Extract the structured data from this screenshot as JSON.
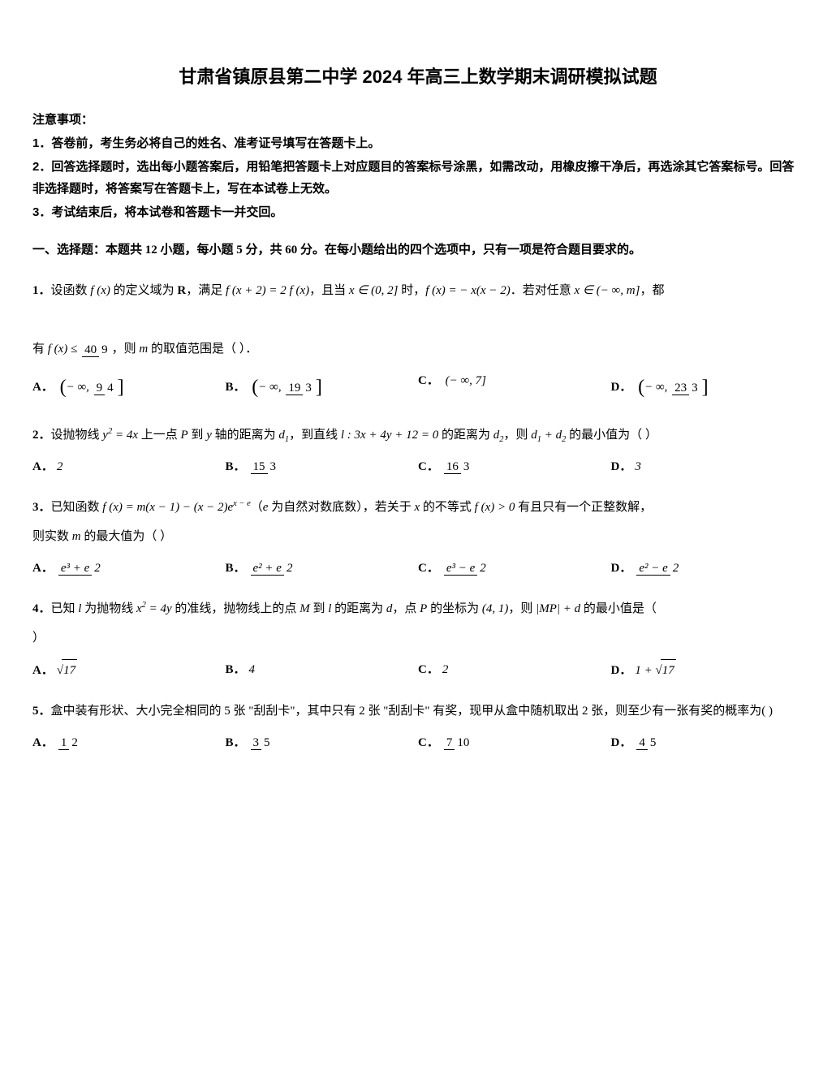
{
  "title": "甘肃省镇原县第二中学 2024 年高三上数学期末调研模拟试题",
  "instructions": {
    "heading": "注意事项：",
    "items": [
      "1．答卷前，考生务必将自己的姓名、准考证号填写在答题卡上。",
      "2．回答选择题时，选出每小题答案后，用铅笔把答题卡上对应题目的答案标号涂黑，如需改动，用橡皮擦干净后，再选涂其它答案标号。回答非选择题时，将答案写在答题卡上，写在本试卷上无效。",
      "3．考试结束后，将本试卷和答题卡一并交回。"
    ]
  },
  "section": "一、选择题：本题共 12 小题，每小题 5 分，共 60 分。在每小题给出的四个选项中，只有一项是符合题目要求的。",
  "q1": {
    "num": "1．",
    "text1": "设函数 ",
    "fx": "f (x)",
    "text2": " 的定义域为 ",
    "R": "R",
    "text3": "，满足 ",
    "eq1_l": "f (x + 2) = 2 f (x)",
    "text4": "，且当 ",
    "cond1": "x ∈ (0, 2]",
    "text5": " 时，",
    "eq2": "f (x) = − x(x − 2)",
    "text6": "．若对任意 ",
    "cond2": "x ∈ (− ∞, m]",
    "text7": "，都",
    "line2_a": "有 ",
    "ineq_num": "40",
    "ineq_den": "9",
    "line2_b": "，则 ",
    "m": "m",
    "line2_c": " 的取值范围是（  ）．",
    "opts": {
      "A_num": "9",
      "A_den": "4",
      "B_num": "19",
      "B_den": "3",
      "C": "(− ∞, 7]",
      "D_num": "23",
      "D_den": "3"
    }
  },
  "q2": {
    "num": "2．",
    "t1": "设抛物线 ",
    "eq": "y",
    "expo": "2",
    "eqr": " = 4x",
    "t2": " 上一点 ",
    "P": "P",
    "t3": " 到 ",
    "y": "y",
    "t4": " 轴的距离为 ",
    "d1": "d",
    "d1s": "1",
    "t5": "，到直线 ",
    "line": "l : 3x + 4y + 12 = 0",
    "t6": " 的距离为 ",
    "d2": "d",
    "d2s": "2",
    "t7": "，则 ",
    "sum": "d",
    "s1": "1",
    "plus": " + d",
    "s2": "2",
    "t8": " 的最小值为（  ）",
    "opts": {
      "A": "2",
      "B_num": "15",
      "B_den": "3",
      "C_num": "16",
      "C_den": "3",
      "D": "3"
    }
  },
  "q3": {
    "num": "3．",
    "t1": "已知函数 ",
    "eq": "f (x) = m(x − 1) − (x − 2)e",
    "expo": "x − e",
    "t2": "（",
    "e": "e",
    "t3": " 为自然对数底数），若关于 ",
    "x": "x",
    "t4": " 的不等式 ",
    "ineq": "f (x) > 0",
    "t5": " 有且只有一个正整数解，",
    "line2": "则实数 ",
    "m": "m",
    "line2b": " 的最大值为（  ）",
    "opts": {
      "A_num": "e³ + e",
      "A_den": "2",
      "B_num": "e² + e",
      "B_den": "2",
      "C_num": "e³ − e",
      "C_den": "2",
      "D_num": "e² − e",
      "D_den": "2"
    }
  },
  "q4": {
    "num": "4．",
    "t1": "已知 ",
    "l": "l",
    "t2": " 为抛物线 ",
    "eq": "x",
    "expo": "2",
    "eqr": " = 4y",
    "t3": " 的准线，抛物线上的点 ",
    "M": "M",
    "t4": " 到 ",
    "l2": "l",
    "t5": " 的距离为 ",
    "d": "d",
    "t6": "，点 ",
    "P": "P",
    "t7": " 的坐标为 ",
    "coord": "(4, 1)",
    "t8": "，则 ",
    "abs": "|MP| + d",
    "t9": " 的最小值是（",
    "t10": "）",
    "opts": {
      "A": "17",
      "B": "4",
      "C": "2",
      "D_pre": "1 + ",
      "D": "17"
    }
  },
  "q5": {
    "num": "5．",
    "text": "盒中装有形状、大小完全相同的 5 张 \"刮刮卡\"，其中只有 2 张 \"刮刮卡\" 有奖，现甲从盒中随机取出 2 张，则至少有一张有奖的概率为(  )",
    "opts": {
      "A_num": "1",
      "A_den": "2",
      "B_num": "3",
      "B_den": "5",
      "C_num": "7",
      "C_den": "10",
      "D_num": "4",
      "D_den": "5"
    }
  },
  "labels": {
    "A": "A．",
    "B": "B．",
    "C": "C．",
    "D": "D．"
  }
}
